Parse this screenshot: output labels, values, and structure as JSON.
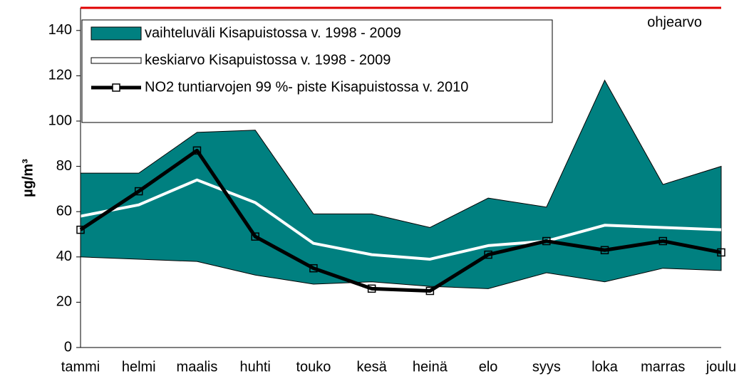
{
  "chart_data": {
    "type": "line",
    "ylabel": "µg/m³",
    "categories": [
      "tammi",
      "helmi",
      "maalis",
      "huhti",
      "touko",
      "kesä",
      "heinä",
      "elo",
      "syys",
      "loka",
      "marras",
      "joulu"
    ],
    "series": [
      {
        "name": "vaihteluväli Kisapuistossa v. 1998 - 2009",
        "type": "range",
        "color": "#008080",
        "upper": [
          77,
          77,
          95,
          96,
          59,
          59,
          53,
          66,
          62,
          118,
          72,
          80
        ],
        "lower": [
          40,
          39,
          38,
          32,
          28,
          29,
          27,
          26,
          33,
          29,
          35,
          34
        ]
      },
      {
        "name": "keskiarvo Kisapuistossa v. 1998 - 2009",
        "color": "#ffffff",
        "values": [
          58,
          63,
          74,
          64,
          46,
          41,
          39,
          45,
          47,
          54,
          53,
          52
        ]
      },
      {
        "name": "NO2 tuntiarvojen 99 %- piste Kisapuistossa v. 2010",
        "color": "#000000",
        "marker": "square",
        "values": [
          52,
          69,
          87,
          49,
          35,
          26,
          25,
          41,
          47,
          43,
          47,
          42
        ]
      }
    ],
    "reference": {
      "value": 150,
      "label": "ohjearvo",
      "color": "#e00000"
    },
    "ylim": [
      0,
      150
    ],
    "yticks": [
      0,
      20,
      40,
      60,
      80,
      100,
      120,
      140
    ]
  }
}
